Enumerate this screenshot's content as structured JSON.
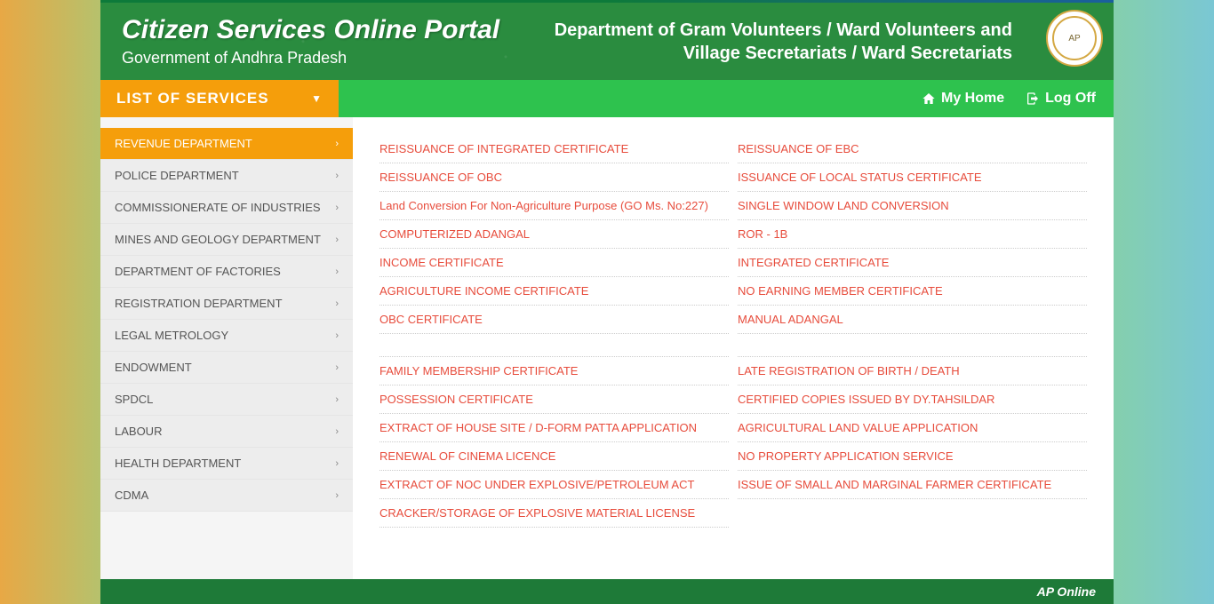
{
  "header": {
    "title": "Citizen Services Online Portal",
    "subtitle": "Government of Andhra Pradesh",
    "deptLine1": "Department of Gram Volunteers / Ward Volunteers and",
    "deptLine2": "Village Secretariats / Ward Secretariats"
  },
  "nav": {
    "listServices": "LIST OF SERVICES",
    "myHome": "My Home",
    "logOff": "Log Off"
  },
  "sidebar": {
    "items": [
      {
        "label": "REVENUE DEPARTMENT",
        "active": true
      },
      {
        "label": "POLICE DEPARTMENT",
        "active": false
      },
      {
        "label": "COMMISSIONERATE OF INDUSTRIES",
        "active": false
      },
      {
        "label": "MINES AND GEOLOGY DEPARTMENT",
        "active": false
      },
      {
        "label": "DEPARTMENT OF FACTORIES",
        "active": false
      },
      {
        "label": "REGISTRATION DEPARTMENT",
        "active": false
      },
      {
        "label": "LEGAL METROLOGY",
        "active": false
      },
      {
        "label": "ENDOWMENT",
        "active": false
      },
      {
        "label": "SPDCL",
        "active": false
      },
      {
        "label": "LABOUR",
        "active": false
      },
      {
        "label": "HEALTH DEPARTMENT",
        "active": false
      },
      {
        "label": "CDMA",
        "active": false
      }
    ]
  },
  "services": {
    "col1": [
      "REISSUANCE OF INTEGRATED CERTIFICATE",
      "REISSUANCE OF OBC",
      "Land Conversion For Non-Agriculture Purpose (GO Ms. No:227)",
      "COMPUTERIZED ADANGAL",
      "INCOME CERTIFICATE",
      "AGRICULTURE INCOME CERTIFICATE",
      "OBC CERTIFICATE",
      "",
      "FAMILY MEMBERSHIP CERTIFICATE",
      "POSSESSION CERTIFICATE",
      "EXTRACT OF HOUSE SITE / D-FORM PATTA APPLICATION",
      "RENEWAL OF CINEMA LICENCE",
      "EXTRACT OF NOC UNDER EXPLOSIVE/PETROLEUM ACT",
      "CRACKER/STORAGE OF EXPLOSIVE MATERIAL LICENSE"
    ],
    "col2": [
      "REISSUANCE OF EBC",
      "ISSUANCE OF LOCAL STATUS CERTIFICATE",
      "SINGLE WINDOW LAND CONVERSION",
      "ROR - 1B",
      "INTEGRATED CERTIFICATE",
      "NO EARNING MEMBER CERTIFICATE",
      "MANUAL ADANGAL",
      "",
      "LATE REGISTRATION OF BIRTH / DEATH",
      "CERTIFIED COPIES ISSUED BY DY.TAHSILDAR",
      "AGRICULTURAL LAND VALUE APPLICATION",
      "NO PROPERTY APPLICATION SERVICE",
      "ISSUE OF SMALL AND MARGINAL FARMER CERTIFICATE"
    ]
  },
  "footer": {
    "brand": "AP Online"
  },
  "colors": {
    "primaryOrange": "#f59e0b",
    "headerGreen": "#2a8c3f",
    "navGreen": "#2ec24e",
    "linkRed": "#e74c3c"
  }
}
